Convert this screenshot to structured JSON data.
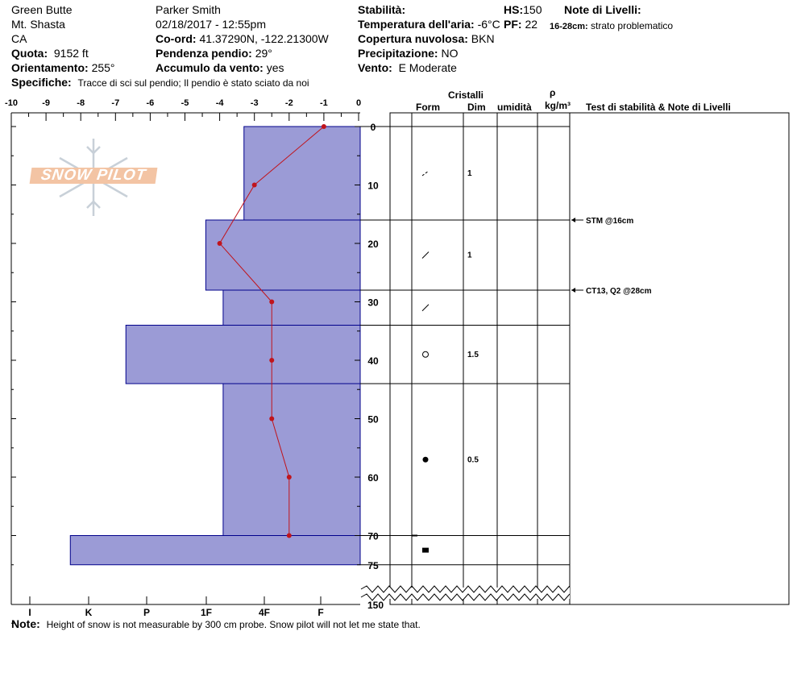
{
  "header": {
    "location": "Green Butte",
    "mountain": "Mt. Shasta",
    "state": "CA",
    "quota_label": "Quota:",
    "quota_value": "9152 ft",
    "orient_label": "Orientamento:",
    "orient_value": "255°",
    "spec_label": "Specifiche:",
    "spec_value": "Tracce di sci sul pendio;  Il pendio è stato sciato da noi",
    "observer": "Parker Smith",
    "datetime": "02/18/2017 - 12:55pm",
    "coord_label": "Co-ord:",
    "coord_value": "41.37290N, -122.21300W",
    "slope_label": "Pendenza pendio:",
    "slope_value": "29°",
    "wind_load_label": "Accumulo da vento:",
    "wind_load_value": "yes",
    "stability_label": "Stabilità:",
    "air_temp_label": "Temperatura dell'aria:",
    "air_temp_value": "-6°C",
    "cloud_label": "Copertura nuvolosa:",
    "cloud_value": "BKN",
    "precip_label": "Precipitazione:",
    "precip_value": "NO",
    "wind_label": "Vento:",
    "wind_value": "E Moderate",
    "hs_label": "HS:",
    "hs_value": "150",
    "pf_label": "PF:",
    "pf_value": "22",
    "layer_notes_label": "Note di Livelli:",
    "layer_note_range": "16-28cm:",
    "layer_note_text": "strato problematico"
  },
  "columns": {
    "crystals": "Cristalli",
    "form": "Form",
    "size": "Dim",
    "moisture": "umidità",
    "rho": "ρ",
    "density_unit": "kg/m³",
    "tests": "Test di stabilità & Note di Livelli"
  },
  "footer": {
    "note_label": "Note:",
    "note_text": "Height of snow is not measurable by 300 cm probe.  Snow pilot will not let me state that."
  },
  "logo": {
    "text": "SNOW PILOT"
  },
  "colors": {
    "hardness_fill": "#9b9bd6",
    "hardness_edge": "#00008b",
    "temp_line": "#c0141c"
  },
  "chart_data": {
    "type": "snow-profile",
    "temp_axis": {
      "ticks": [
        -10,
        -9,
        -8,
        -7,
        -6,
        -5,
        -4,
        -3,
        -2,
        -1,
        0
      ]
    },
    "depth_axis": {
      "ticks": [
        0,
        10,
        20,
        30,
        40,
        50,
        60,
        70,
        75
      ],
      "bottom_label": "150"
    },
    "hardness_axis": {
      "labels": [
        "I",
        "K",
        "P",
        "1F",
        "4F",
        "F"
      ]
    },
    "hardness_layers": [
      {
        "top": 0,
        "bottom": 16,
        "temp_extent": -3.3
      },
      {
        "top": 16,
        "bottom": 28,
        "temp_extent": -4.4
      },
      {
        "top": 28,
        "bottom": 34,
        "temp_extent": -3.9
      },
      {
        "top": 34,
        "bottom": 44,
        "temp_extent": -6.7
      },
      {
        "top": 44,
        "bottom": 70,
        "temp_extent": -3.9
      },
      {
        "top": 70,
        "bottom": 75,
        "temp_extent": -8.3
      }
    ],
    "temperature_profile": [
      {
        "depth": 0,
        "temp": -1.0
      },
      {
        "depth": 10,
        "temp": -3.0
      },
      {
        "depth": 20,
        "temp": -4.0
      },
      {
        "depth": 30,
        "temp": -2.5
      },
      {
        "depth": 40,
        "temp": -2.5
      },
      {
        "depth": 50,
        "temp": -2.5
      },
      {
        "depth": 60,
        "temp": -2.0
      },
      {
        "depth": 70,
        "temp": -2.0
      }
    ],
    "layer_boundaries": [
      0,
      16,
      28,
      34,
      44,
      70,
      75
    ],
    "crystals": [
      {
        "depth": 8,
        "form": "decomposing",
        "size": "1"
      },
      {
        "depth": 22,
        "form": "precip",
        "size": "1"
      },
      {
        "depth": 31,
        "form": "precip",
        "size": ""
      },
      {
        "depth": 39,
        "form": "rounded",
        "size": "1.5"
      },
      {
        "depth": 57,
        "form": "melt-freeze",
        "size": "0.5"
      },
      {
        "depth": 72.5,
        "form": "ice",
        "size": ""
      }
    ],
    "stability_tests": [
      {
        "depth": 16,
        "label": "STM @16cm"
      },
      {
        "depth": 28,
        "label": "CT13, Q2 @28cm"
      }
    ]
  }
}
